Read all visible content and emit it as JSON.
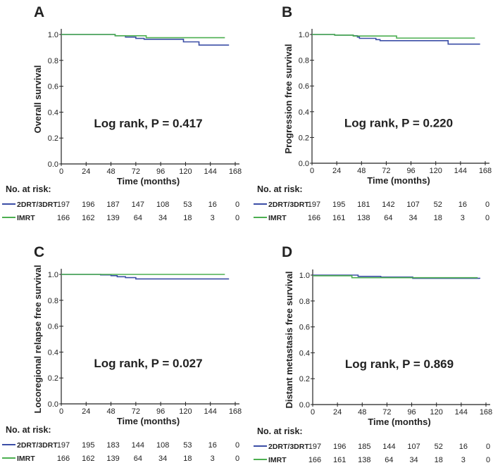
{
  "colors": {
    "2DRT/3DRT": "#3b4ea6",
    "IMRT": "#4caf50"
  },
  "chart_data": [
    {
      "type": "line",
      "panel": "A",
      "xlabel": "Time (months)",
      "ylabel": "Overall survival",
      "xlim": [
        0,
        168
      ],
      "ylim": [
        0,
        1.0
      ],
      "xticks": [
        0,
        24,
        48,
        72,
        96,
        120,
        144,
        168
      ],
      "yticks": [
        "0.0",
        "0.2",
        "0.4",
        "0.6",
        "0.8",
        "1.0"
      ],
      "annotation": "Log rank, P = 0.417",
      "series": [
        {
          "name": "2DRT/3DRT",
          "steps": [
            [
              0,
              1.0
            ],
            [
              52,
              0.99
            ],
            [
              62,
              0.98
            ],
            [
              72,
              0.97
            ],
            [
              80,
              0.963
            ],
            [
              118,
              0.943
            ],
            [
              133,
              0.918
            ],
            [
              162,
              0.918
            ]
          ]
        },
        {
          "name": "IMRT",
          "steps": [
            [
              0,
              1.0
            ],
            [
              52,
              0.99
            ],
            [
              82,
              0.975
            ],
            [
              158,
              0.975
            ]
          ]
        }
      ],
      "risk_title": "No. at risk:",
      "risk": [
        {
          "group": "2DRT/3DRT",
          "counts": [
            197,
            196,
            187,
            147,
            108,
            53,
            16,
            0
          ]
        },
        {
          "group": "IMRT",
          "counts": [
            166,
            162,
            139,
            64,
            34,
            18,
            3,
            0
          ]
        }
      ]
    },
    {
      "type": "line",
      "panel": "B",
      "xlabel": "Time (months)",
      "ylabel": "Progression free survival",
      "xlim": [
        0,
        168
      ],
      "ylim": [
        0,
        1.0
      ],
      "xticks": [
        0,
        24,
        48,
        72,
        96,
        120,
        144,
        168
      ],
      "yticks": [
        "0.0",
        "0.2",
        "0.4",
        "0.6",
        "0.8",
        "1.0"
      ],
      "annotation": "Log rank, P = 0.220",
      "series": [
        {
          "name": "2DRT/3DRT",
          "steps": [
            [
              0,
              1.0
            ],
            [
              22,
              0.995
            ],
            [
              40,
              0.99
            ],
            [
              44,
              0.98
            ],
            [
              46,
              0.97
            ],
            [
              62,
              0.96
            ],
            [
              66,
              0.952
            ],
            [
              132,
              0.925
            ],
            [
              163,
              0.925
            ]
          ]
        },
        {
          "name": "IMRT",
          "steps": [
            [
              0,
              1.0
            ],
            [
              22,
              0.995
            ],
            [
              40,
              0.988
            ],
            [
              82,
              0.972
            ],
            [
              158,
              0.972
            ]
          ]
        }
      ],
      "risk_title": "No. at risk:",
      "risk": [
        {
          "group": "2DRT/3DRT",
          "counts": [
            197,
            195,
            181,
            142,
            107,
            52,
            16,
            0
          ]
        },
        {
          "group": "IMRT",
          "counts": [
            166,
            161,
            138,
            64,
            34,
            18,
            3,
            0
          ]
        }
      ]
    },
    {
      "type": "line",
      "panel": "C",
      "xlabel": "Time (months)",
      "ylabel": "Locoregional relapse free survival",
      "xlim": [
        0,
        168
      ],
      "ylim": [
        0,
        1.0
      ],
      "xticks": [
        0,
        24,
        48,
        72,
        96,
        120,
        144,
        168
      ],
      "yticks": [
        "0.0",
        "0.2",
        "0.4",
        "0.6",
        "0.8",
        "1.0"
      ],
      "annotation": "Log rank, P = 0.027",
      "series": [
        {
          "name": "2DRT/3DRT",
          "steps": [
            [
              0,
              1.0
            ],
            [
              38,
              0.996
            ],
            [
              48,
              0.99
            ],
            [
              54,
              0.982
            ],
            [
              62,
              0.975
            ],
            [
              72,
              0.965
            ],
            [
              162,
              0.965
            ]
          ]
        },
        {
          "name": "IMRT",
          "steps": [
            [
              0,
              1.0
            ],
            [
              158,
              1.0
            ]
          ]
        }
      ],
      "risk_title": "No. at risk:",
      "risk": [
        {
          "group": "2DRT/3DRT",
          "counts": [
            197,
            195,
            183,
            144,
            108,
            53,
            16,
            0
          ]
        },
        {
          "group": "IMRT",
          "counts": [
            166,
            162,
            139,
            64,
            34,
            18,
            3,
            0
          ]
        }
      ]
    },
    {
      "type": "line",
      "panel": "D",
      "xlabel": "Time (months)",
      "ylabel": "Distant metastasis free survival",
      "xlim": [
        0,
        168
      ],
      "ylim": [
        0,
        1.0
      ],
      "xticks": [
        0,
        24,
        48,
        72,
        96,
        120,
        144,
        168
      ],
      "yticks": [
        "0.0",
        "0.2",
        "0.4",
        "0.6",
        "0.8",
        "1.0"
      ],
      "annotation": "Log rank, P = 0.869",
      "series": [
        {
          "name": "2DRT/3DRT",
          "steps": [
            [
              0,
              1.0
            ],
            [
              44,
              0.99
            ],
            [
              66,
              0.985
            ],
            [
              97,
              0.975
            ],
            [
              162,
              0.972
            ]
          ]
        },
        {
          "name": "IMRT",
          "steps": [
            [
              0,
              0.995
            ],
            [
              38,
              0.98
            ],
            [
              160,
              0.98
            ]
          ]
        }
      ],
      "risk_title": "No. at risk:",
      "risk": [
        {
          "group": "2DRT/3DRT",
          "counts": [
            197,
            196,
            185,
            144,
            107,
            52,
            16,
            0
          ]
        },
        {
          "group": "IMRT",
          "counts": [
            166,
            161,
            138,
            64,
            34,
            18,
            3,
            0
          ]
        }
      ]
    }
  ]
}
